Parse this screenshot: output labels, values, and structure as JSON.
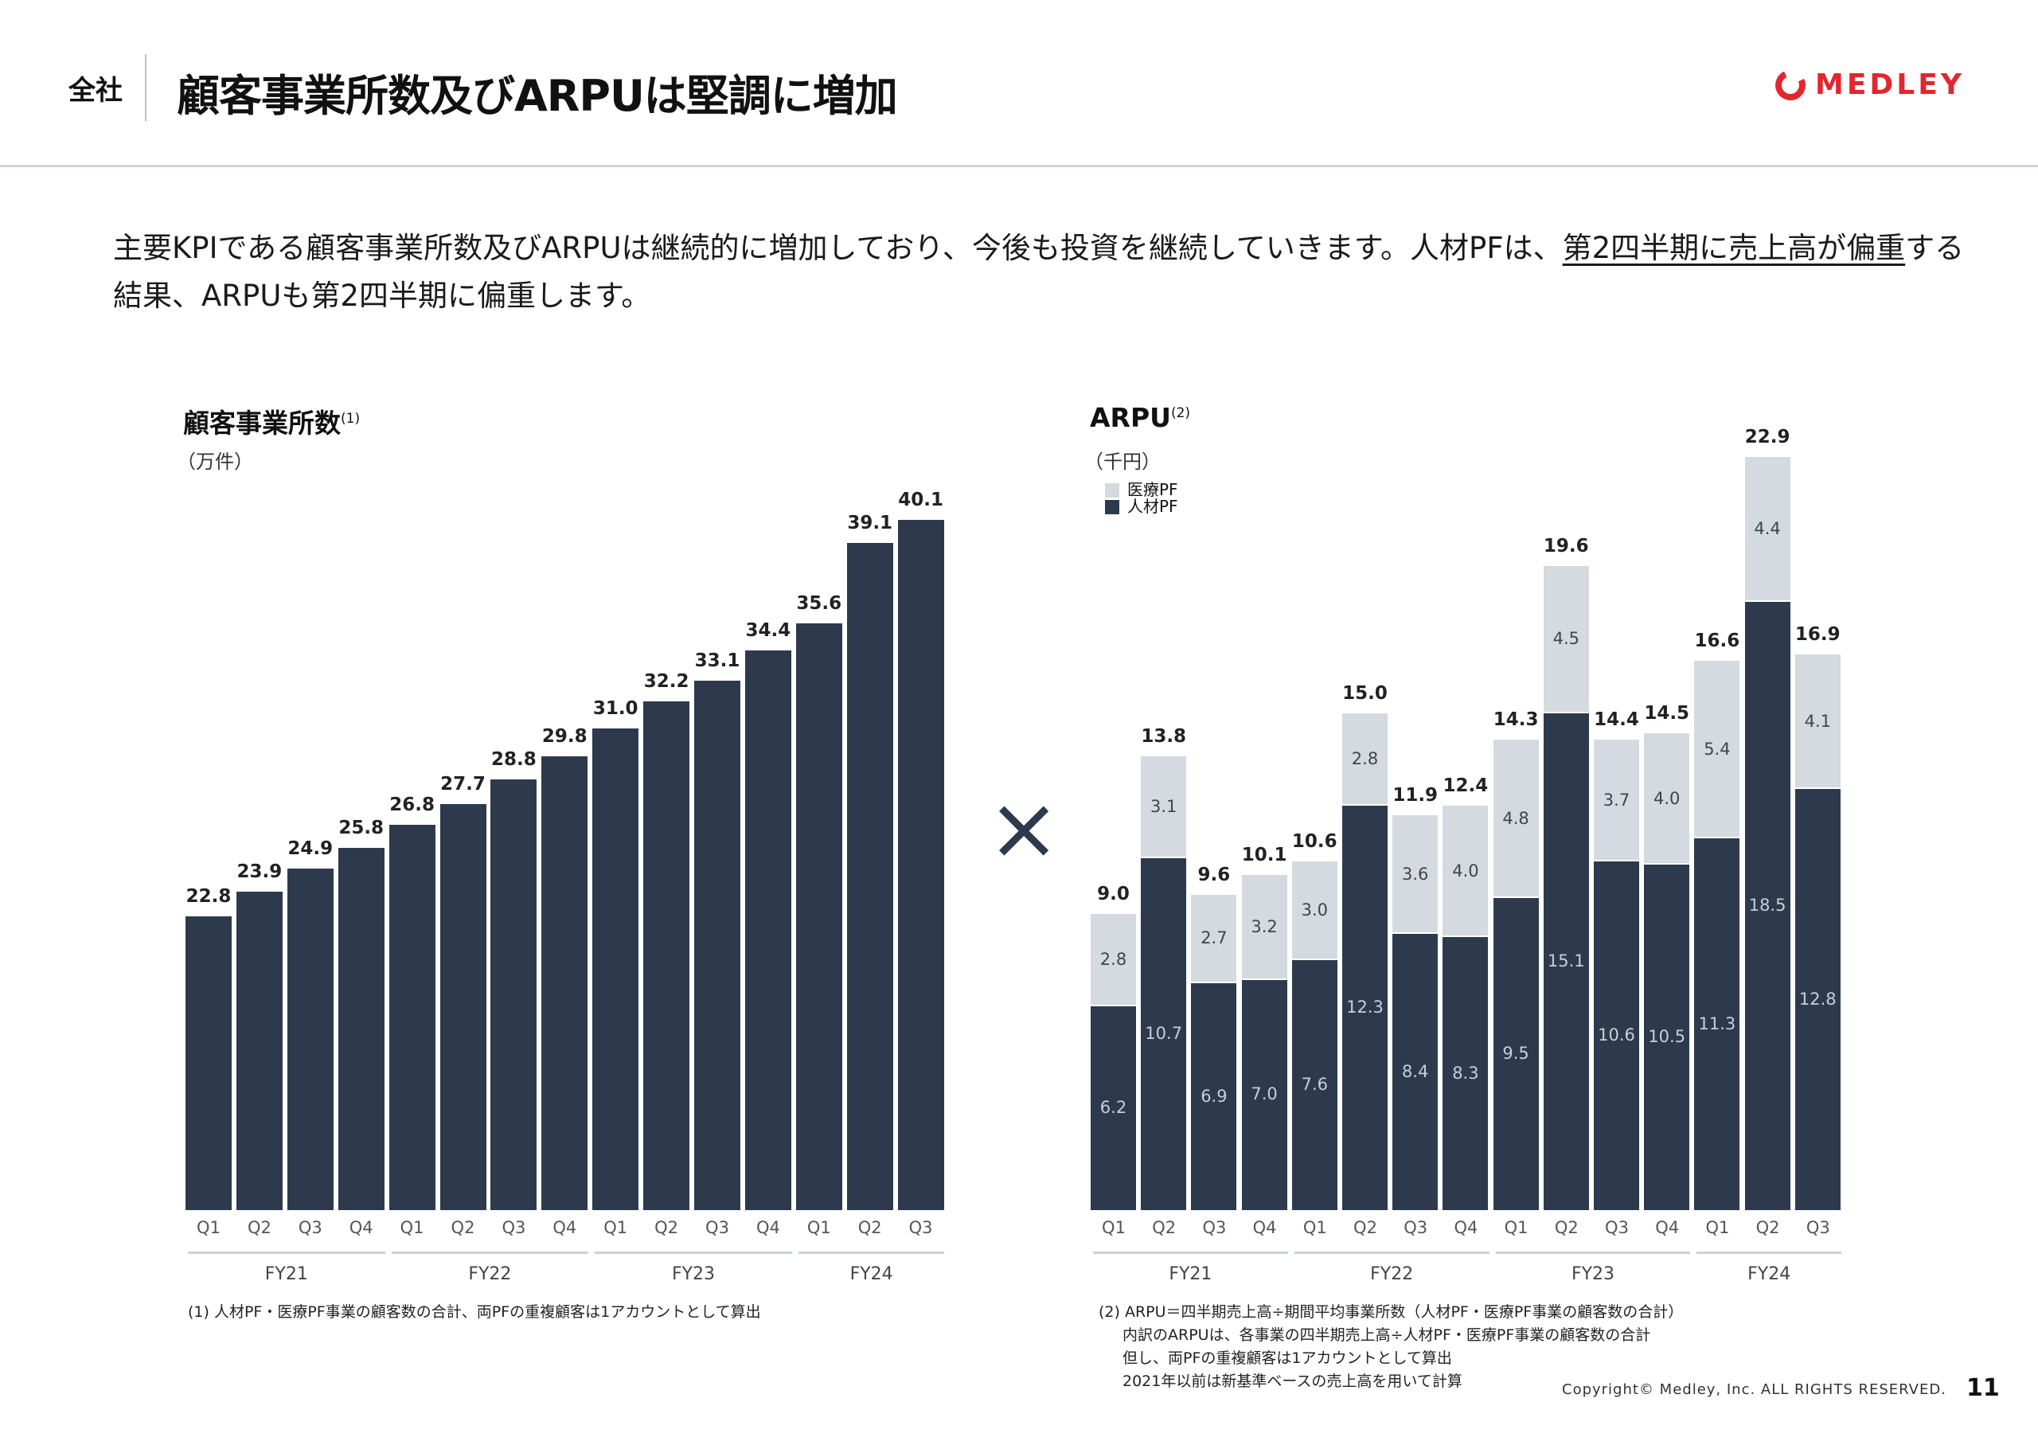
{
  "header": {
    "section": "全社",
    "title": "顧客事業所数及びARPUは堅調に増加",
    "logo": "MEDLEY"
  },
  "lead": {
    "seg1": "主要KPIである顧客事業所数及びARPUは継続的に増加しており、今後も投資を継続していきます。人材PFは、",
    "seg2": "第2四半期に売上高が偏重",
    "seg3": "する結果、ARPUも第2四半期に偏重します。"
  },
  "times_symbol": "×",
  "colors": {
    "dark": "#2d3a4d",
    "light": "#d5dae0",
    "brand": "#e3262e"
  },
  "chart_data": [
    {
      "type": "bar",
      "title": "顧客事業所数",
      "title_note": "(1)",
      "unit": "（万件）",
      "categories": [
        "Q1",
        "Q2",
        "Q3",
        "Q4",
        "Q1",
        "Q2",
        "Q3",
        "Q4",
        "Q1",
        "Q2",
        "Q3",
        "Q4",
        "Q1",
        "Q2",
        "Q3"
      ],
      "groups": [
        {
          "label": "FY21",
          "count": 4
        },
        {
          "label": "FY22",
          "count": 4
        },
        {
          "label": "FY23",
          "count": 4
        },
        {
          "label": "FY24",
          "count": 3
        }
      ],
      "values": [
        22.8,
        23.9,
        24.9,
        25.8,
        26.8,
        27.7,
        28.8,
        29.8,
        31.0,
        32.2,
        33.1,
        34.4,
        35.6,
        39.1,
        40.1
      ],
      "ylim": [
        10,
        41
      ],
      "footnote": "(1) 人材PF・医療PF事業の顧客数の合計、両PFの重複顧客は1アカウントとして算出"
    },
    {
      "type": "bar",
      "stacked": true,
      "title": "ARPU",
      "title_note": "(2)",
      "unit": "（千円）",
      "categories": [
        "Q1",
        "Q2",
        "Q3",
        "Q4",
        "Q1",
        "Q2",
        "Q3",
        "Q4",
        "Q1",
        "Q2",
        "Q3",
        "Q4",
        "Q1",
        "Q2",
        "Q3"
      ],
      "groups": [
        {
          "label": "FY21",
          "count": 4
        },
        {
          "label": "FY22",
          "count": 4
        },
        {
          "label": "FY23",
          "count": 4
        },
        {
          "label": "FY24",
          "count": 3
        }
      ],
      "series": [
        {
          "name": "人材PF",
          "values": [
            6.2,
            10.7,
            6.9,
            7.0,
            7.6,
            12.3,
            8.4,
            8.3,
            9.5,
            15.1,
            10.6,
            10.5,
            11.3,
            18.5,
            12.8
          ]
        },
        {
          "name": "医療PF",
          "values": [
            2.8,
            3.1,
            2.7,
            3.2,
            3.0,
            2.8,
            3.6,
            4.0,
            4.8,
            4.5,
            3.7,
            4.0,
            5.4,
            4.4,
            4.1
          ]
        }
      ],
      "totals": [
        9.0,
        13.8,
        9.6,
        10.1,
        10.6,
        15.0,
        11.9,
        12.4,
        14.3,
        19.6,
        14.4,
        14.5,
        16.6,
        22.9,
        16.9
      ],
      "ylim": [
        0,
        23
      ],
      "legend": [
        "医療PF",
        "人材PF"
      ],
      "footnotes": [
        "(2) ARPU＝四半期売上高÷期間平均事業所数（人材PF・医療PF事業の顧客数の合計）",
        "内訳のARPUは、各事業の四半期売上高÷人材PF・医療PF事業の顧客数の合計",
        "但し、両PFの重複顧客は1アカウントとして算出",
        "2021年以前は新基準ベースの売上高を用いて計算"
      ]
    }
  ],
  "footer": {
    "copyright": "Copyright© Medley, Inc. ALL RIGHTS RESERVED.",
    "page": "11"
  }
}
